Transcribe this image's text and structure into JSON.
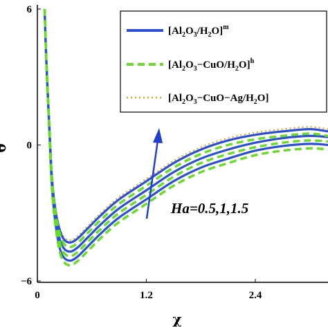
{
  "chart_data": {
    "type": "line",
    "title": "",
    "xlabel": "χ",
    "ylabel": "θ",
    "xlim": [
      0,
      3.2
    ],
    "ylim": [
      -6,
      6
    ],
    "xticks": [
      {
        "value": 0,
        "label": "0"
      },
      {
        "value": 1.2,
        "label": "1.2"
      },
      {
        "value": 2.4,
        "label": "2.4"
      }
    ],
    "yticks": [
      {
        "value": 6,
        "label": "6"
      },
      {
        "value": 0,
        "label": "0"
      },
      {
        "value": -6,
        "label": "−6"
      }
    ],
    "legend_position": "top-right",
    "series": [
      {
        "name": "[Al2O3/H2O]m",
        "style": "solid",
        "color": "#2a4fd6",
        "curves": [
          {
            "x": [
              0.08,
              0.1,
              0.13,
              0.16,
              0.2,
              0.25,
              0.3,
              0.37,
              0.45,
              0.55,
              0.7,
              0.9,
              1.2,
              1.5,
              1.8,
              2.1,
              2.4,
              2.7,
              3.0,
              3.2
            ],
            "y": [
              6,
              3.6,
              0.8,
              -1.8,
              -3.5,
              -4.6,
              -5.0,
              -5.1,
              -4.9,
              -4.5,
              -3.9,
              -3.2,
              -2.4,
              -1.6,
              -1.0,
              -0.6,
              -0.25,
              -0.05,
              0.05,
              0.0
            ]
          },
          {
            "x": [
              0.08,
              0.1,
              0.13,
              0.16,
              0.2,
              0.25,
              0.3,
              0.37,
              0.45,
              0.55,
              0.7,
              0.9,
              1.2,
              1.5,
              1.8,
              2.1,
              2.4,
              2.7,
              3.0,
              3.2
            ],
            "y": [
              6,
              3.6,
              0.9,
              -1.6,
              -3.2,
              -4.2,
              -4.6,
              -4.7,
              -4.5,
              -4.1,
              -3.5,
              -2.8,
              -2.0,
              -1.2,
              -0.6,
              -0.2,
              0.1,
              0.3,
              0.4,
              0.35
            ]
          },
          {
            "x": [
              0.08,
              0.1,
              0.13,
              0.16,
              0.2,
              0.25,
              0.3,
              0.37,
              0.45,
              0.55,
              0.7,
              0.9,
              1.2,
              1.5,
              1.8,
              2.1,
              2.4,
              2.7,
              3.0,
              3.2
            ],
            "y": [
              6,
              3.6,
              1.0,
              -1.4,
              -2.9,
              -3.8,
              -4.2,
              -4.3,
              -4.1,
              -3.7,
              -3.1,
              -2.4,
              -1.6,
              -0.8,
              -0.2,
              0.2,
              0.45,
              0.6,
              0.7,
              0.6
            ]
          }
        ]
      },
      {
        "name": "[Al2O3−CuO/H2O]h",
        "style": "dashed",
        "color": "#66dd22",
        "curves": [
          {
            "x": [
              0.08,
              0.1,
              0.13,
              0.16,
              0.2,
              0.25,
              0.3,
              0.37,
              0.45,
              0.55,
              0.7,
              0.9,
              1.2,
              1.5,
              1.8,
              2.1,
              2.4,
              2.7,
              3.0,
              3.2
            ],
            "y": [
              6,
              3.6,
              0.7,
              -1.9,
              -3.6,
              -4.75,
              -5.2,
              -5.3,
              -5.1,
              -4.7,
              -4.1,
              -3.4,
              -2.6,
              -1.8,
              -1.2,
              -0.8,
              -0.45,
              -0.25,
              -0.15,
              -0.2
            ]
          },
          {
            "x": [
              0.08,
              0.1,
              0.13,
              0.16,
              0.2,
              0.25,
              0.3,
              0.37,
              0.45,
              0.55,
              0.7,
              0.9,
              1.2,
              1.5,
              1.8,
              2.1,
              2.4,
              2.7,
              3.0,
              3.2
            ],
            "y": [
              6,
              3.6,
              0.8,
              -1.7,
              -3.3,
              -4.35,
              -4.8,
              -4.9,
              -4.7,
              -4.3,
              -3.7,
              -3.0,
              -2.2,
              -1.4,
              -0.8,
              -0.4,
              -0.1,
              0.1,
              0.2,
              0.15
            ]
          },
          {
            "x": [
              0.08,
              0.1,
              0.13,
              0.16,
              0.2,
              0.25,
              0.3,
              0.37,
              0.45,
              0.55,
              0.7,
              0.9,
              1.2,
              1.5,
              1.8,
              2.1,
              2.4,
              2.7,
              3.0,
              3.2
            ],
            "y": [
              6,
              3.6,
              0.9,
              -1.5,
              -3.0,
              -3.95,
              -4.4,
              -4.5,
              -4.3,
              -3.9,
              -3.3,
              -2.6,
              -1.8,
              -1.0,
              -0.4,
              0.0,
              0.25,
              0.4,
              0.5,
              0.4
            ]
          }
        ]
      },
      {
        "name": "[Al2O3−CuO−Ag/H2O]",
        "style": "dotted",
        "color": "#e8a020",
        "curves": [
          {
            "x": [
              0.08,
              0.1,
              0.13,
              0.16,
              0.2,
              0.25,
              0.3,
              0.37,
              0.45,
              0.55,
              0.7,
              0.9,
              1.2,
              1.5,
              1.8,
              2.1,
              2.4,
              2.7,
              3.0,
              3.2
            ],
            "y": [
              6,
              3.6,
              1.0,
              -1.3,
              -2.8,
              -3.7,
              -4.1,
              -4.2,
              -4.0,
              -3.6,
              -3.0,
              -2.3,
              -1.5,
              -0.7,
              -0.1,
              0.3,
              0.55,
              0.7,
              0.8,
              0.7
            ]
          }
        ]
      }
    ],
    "annotations": [
      {
        "text": "Ha=0.5,1,1.5"
      }
    ]
  },
  "legend": {
    "items": [
      {
        "base": "[Al",
        "s1": "2",
        "mid": "O",
        "s2": "3",
        "rest": "/H",
        "s3": "2",
        "end": "O]",
        "sup": "m"
      },
      {
        "base": "[Al",
        "s1": "2",
        "mid": "O",
        "s2": "3",
        "rest": "−CuO/H",
        "s3": "2",
        "end": "O]",
        "sup": "h"
      },
      {
        "base": "[Al",
        "s1": "2",
        "mid": "O",
        "s2": "3",
        "rest": "−CuO−Ag/H",
        "s3": "2",
        "end": "O]",
        "sup": ""
      }
    ]
  }
}
